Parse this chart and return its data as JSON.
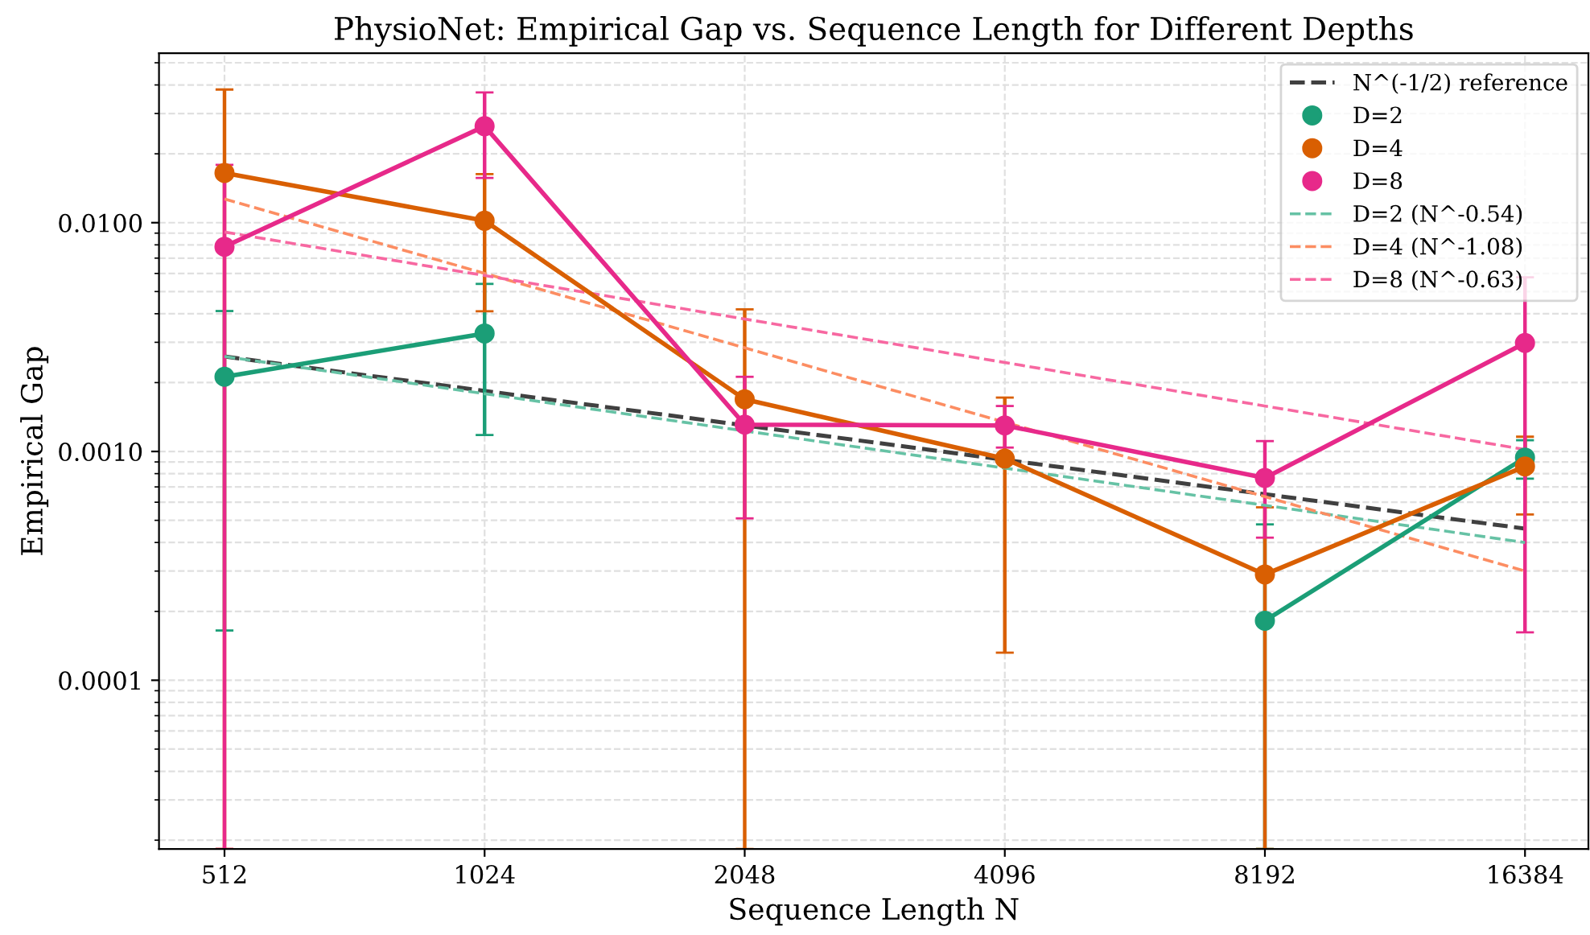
{
  "chart_data": {
    "type": "line",
    "title": "PhysioNet: Empirical Gap vs. Sequence Length for Different Depths",
    "xlabel": "Sequence Length N",
    "ylabel": "Empirical Gap",
    "log": "xy",
    "xlim": [
      430,
      19400
    ],
    "ylim": [
      1.83e-05,
      0.055
    ],
    "xticks": [
      512,
      1024,
      2048,
      4096,
      8192,
      16384
    ],
    "yticks": [
      {
        "value": 0.0001,
        "label": "0.0001"
      },
      {
        "value": 0.001,
        "label": "0.0010"
      },
      {
        "value": 0.01,
        "label": "0.0100"
      }
    ],
    "grid": true,
    "legend": "top right",
    "series": [
      {
        "name": "N^(-1/2) reference",
        "color": "#404040",
        "line_style": "dashed",
        "marker": "none",
        "x": [
          512,
          16384
        ],
        "values": [
          0.0026,
          0.00046
        ]
      },
      {
        "name": "D=2",
        "color": "#1b9e77",
        "line_style": "solid",
        "marker": "circle",
        "x": [
          512,
          1024,
          2048,
          4096,
          8192,
          16384
        ],
        "values": [
          0.00212,
          0.00328,
          null,
          null,
          0.000182,
          0.00094
        ],
        "errors": [
          [
            0.000165,
            0.00411
          ],
          [
            0.00118,
            0.0054
          ],
          null,
          null,
          [
            1.83e-05,
            0.00048
          ],
          [
            0.00076,
            0.00112
          ]
        ]
      },
      {
        "name": "D=4",
        "color": "#d95f02",
        "line_style": "solid",
        "marker": "circle",
        "x": [
          512,
          1024,
          2048,
          4096,
          8192,
          16384
        ],
        "values": [
          0.0165,
          0.0102,
          0.00169,
          0.00093,
          0.00029,
          0.00086
        ],
        "errors": [
          [
            1.83e-05,
            0.0382
          ],
          [
            0.0041,
            0.0163
          ],
          [
            1.83e-05,
            0.00418
          ],
          [
            0.000132,
            0.00172
          ],
          [
            1.83e-05,
            0.00057
          ],
          [
            0.00053,
            0.00116
          ]
        ]
      },
      {
        "name": "D=8",
        "color": "#e7298a",
        "line_style": "solid",
        "marker": "circle",
        "x": [
          512,
          1024,
          2048,
          4096,
          8192,
          16384
        ],
        "values": [
          0.00785,
          0.0264,
          0.00131,
          0.0013,
          0.000766,
          0.00298
        ],
        "errors": [
          [
            1.83e-05,
            0.0179
          ],
          [
            0.0157,
            0.0371
          ],
          [
            0.00051,
            0.00212
          ],
          [
            0.00104,
            0.00158
          ],
          [
            0.00042,
            0.00111
          ],
          [
            0.000162,
            0.00577
          ]
        ]
      },
      {
        "name": "D=2 (N^-0.54)",
        "color": "#66c2a5",
        "line_style": "dashed",
        "marker": "none",
        "x": [
          512,
          16384
        ],
        "values": [
          0.0026,
          0.0004
        ]
      },
      {
        "name": "D=4 (N^-1.08)",
        "color": "#fc8d62",
        "line_style": "dashed",
        "marker": "none",
        "x": [
          512,
          16384
        ],
        "values": [
          0.0127,
          0.0003
        ]
      },
      {
        "name": "D=8 (N^-0.63)",
        "color": "#f768a1",
        "line_style": "dashed",
        "marker": "none",
        "x": [
          512,
          16384
        ],
        "values": [
          0.0091,
          0.00102
        ]
      }
    ]
  }
}
